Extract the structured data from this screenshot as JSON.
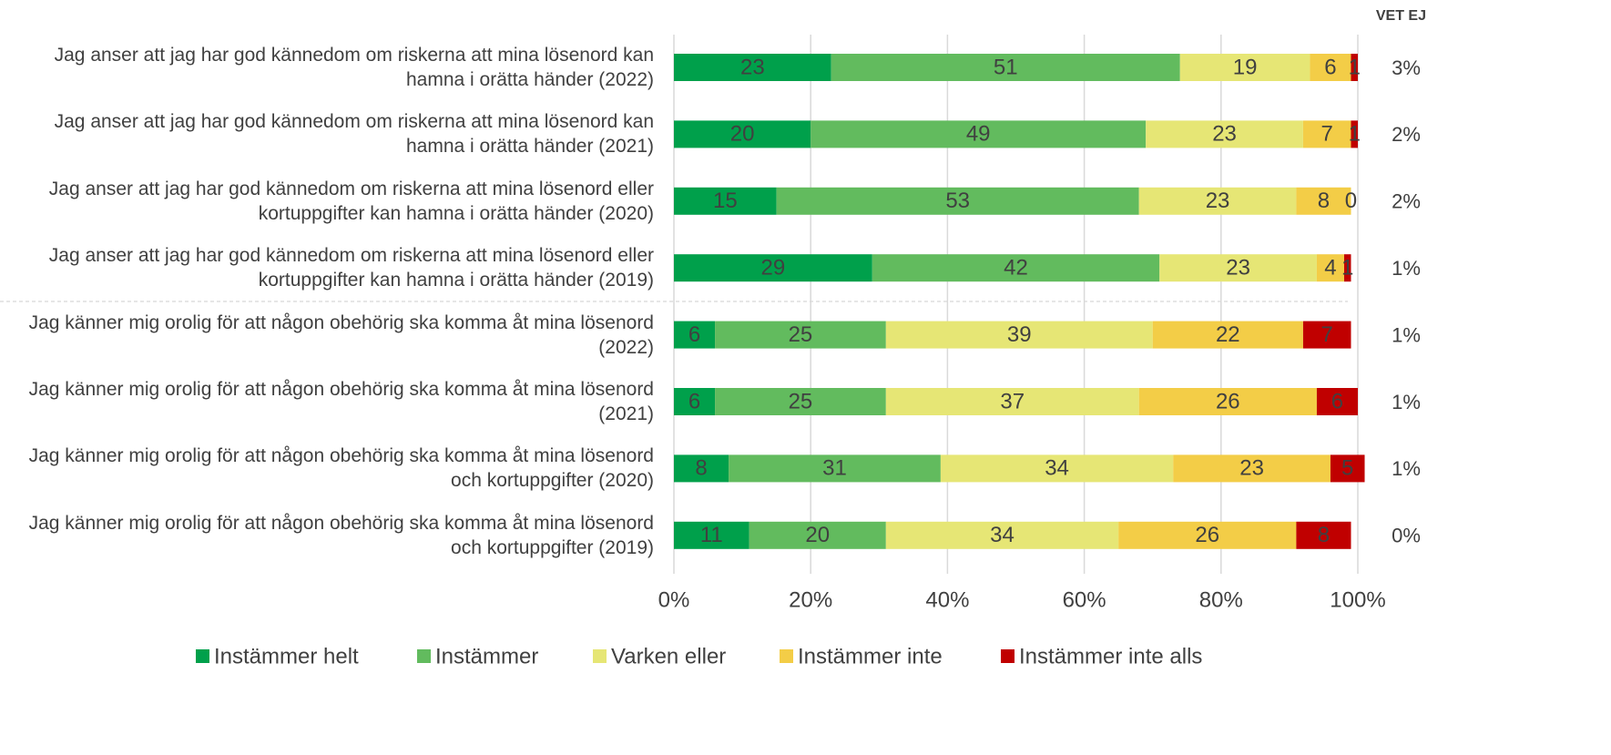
{
  "chart_data": {
    "type": "stacked_bar_horizontal",
    "categories": [
      "Jag anser att jag har god kännedom om riskerna att mina lösenord kan hamna i orätta händer (2022)",
      "Jag anser att jag har god kännedom om riskerna att mina lösenord kan hamna i orätta händer (2021)",
      "Jag anser att jag har god kännedom om riskerna att mina lösenord eller kortuppgifter kan hamna i orätta händer (2020)",
      "Jag anser att jag har god kännedom om riskerna att mina lösenord eller kortuppgifter kan hamna i orätta händer (2019)",
      "Jag känner mig orolig för att någon obehörig ska komma åt mina lösenord (2022)",
      "Jag känner mig orolig för att någon obehörig ska komma åt mina lösenord (2021)",
      "Jag känner mig orolig för att någon obehörig ska komma åt mina lösenord och kortuppgifter (2020)",
      "Jag känner mig orolig för att någon obehörig ska komma åt mina lösenord och kortuppgifter (2019)"
    ],
    "series": [
      {
        "name": "Instämmer helt",
        "color": "#00a04b",
        "values": [
          23,
          20,
          15,
          29,
          6,
          6,
          8,
          11
        ]
      },
      {
        "name": "Instämmer",
        "color": "#62bb5e",
        "values": [
          51,
          49,
          53,
          42,
          25,
          25,
          31,
          20
        ]
      },
      {
        "name": "Varken eller",
        "color": "#e6e675",
        "values": [
          19,
          23,
          23,
          23,
          39,
          37,
          34,
          34
        ]
      },
      {
        "name": "Instämmer inte",
        "color": "#f3cd47",
        "values": [
          6,
          7,
          8,
          4,
          22,
          26,
          23,
          26
        ]
      },
      {
        "name": "Instämmer inte alls",
        "color": "#c00000",
        "values": [
          1,
          1,
          0,
          1,
          7,
          6,
          5,
          8
        ]
      }
    ],
    "vet_ej": {
      "title": "VET EJ",
      "values": [
        3,
        2,
        2,
        1,
        1,
        1,
        1,
        0
      ],
      "value_labels": [
        "3%",
        "2%",
        "2%",
        "1%",
        "1%",
        "1%",
        "1%",
        "0%"
      ]
    },
    "xlim": [
      0,
      100
    ],
    "xticks": [
      {
        "value": 0,
        "label": "0%"
      },
      {
        "value": 20,
        "label": "20%"
      },
      {
        "value": 40,
        "label": "40%"
      },
      {
        "value": 60,
        "label": "60%"
      },
      {
        "value": 80,
        "label": "80%"
      },
      {
        "value": 100,
        "label": "100%"
      }
    ],
    "grid": true
  }
}
